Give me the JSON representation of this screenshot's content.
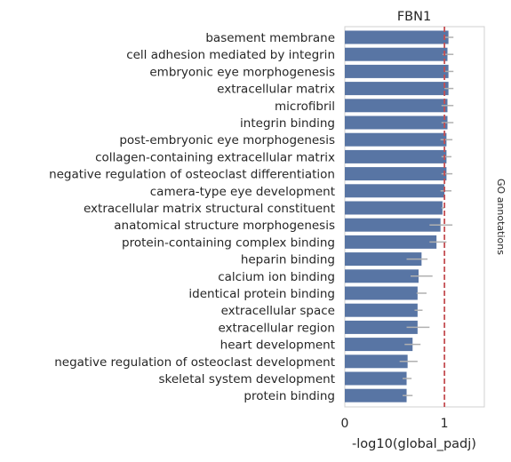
{
  "chart_data": {
    "type": "bar",
    "orientation": "horizontal",
    "title": "FBN1",
    "xlabel": "-log10(global_padj)",
    "ylabel": "GO annotations",
    "xlim": [
      0,
      1.4
    ],
    "xticks": [
      0,
      1
    ],
    "reference_line": 1,
    "grid": false,
    "bar_color": "#5875a4",
    "error_color": "#b0b0b0",
    "ref_line_color": "#c44e52",
    "categories": [
      "basement membrane",
      "cell adhesion mediated by integrin",
      "embryonic eye morphogenesis",
      "extracellular matrix",
      "microfibril",
      "integrin binding",
      "post-embryonic eye morphogenesis",
      "collagen-containing extracellular matrix",
      "negative regulation of osteoclast differentiation",
      "camera-type eye development",
      "extracellular matrix structural constituent",
      "anatomical structure morphogenesis",
      "protein-containing complex binding",
      "heparin binding",
      "calcium ion binding",
      "identical protein binding",
      "extracellular space",
      "extracellular region",
      "heart development",
      "negative regulation of osteoclast development",
      "skeletal system development",
      "protein binding"
    ],
    "values": [
      1.04,
      1.03,
      1.04,
      1.04,
      1.03,
      1.03,
      1.02,
      1.02,
      1.02,
      1.0,
      0.98,
      0.96,
      0.92,
      0.77,
      0.74,
      0.73,
      0.73,
      0.73,
      0.68,
      0.63,
      0.62,
      0.62
    ],
    "error_low": [
      1.0,
      0.98,
      1.0,
      1.0,
      0.97,
      0.97,
      0.96,
      0.97,
      0.97,
      0.96,
      0.97,
      0.85,
      0.85,
      0.62,
      0.66,
      0.72,
      0.7,
      0.62,
      0.6,
      0.55,
      0.58,
      0.58
    ],
    "error_high": [
      1.09,
      1.09,
      1.09,
      1.09,
      1.09,
      1.09,
      1.08,
      1.07,
      1.08,
      1.07,
      1.0,
      1.08,
      1.02,
      0.83,
      0.88,
      0.82,
      0.78,
      0.85,
      0.76,
      0.73,
      0.67,
      0.68
    ]
  }
}
